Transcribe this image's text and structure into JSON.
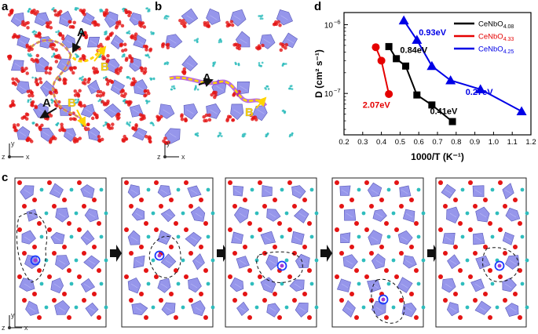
{
  "panels": {
    "a": {
      "letter": "a",
      "path_labels": [
        "A",
        "B",
        "A",
        "B"
      ]
    },
    "b": {
      "letter": "b",
      "path_labels": [
        "A",
        "B"
      ]
    },
    "c": {
      "letter": "c"
    },
    "d": {
      "letter": "d"
    }
  },
  "axes_indicator": {
    "y": "y",
    "x": "x",
    "z": "z"
  },
  "colors": {
    "polyhedron": "#7c7ce6",
    "oxygen": "#e41414",
    "cerium": "#2fbdbd",
    "path_yellow": "#ffd400",
    "path_purple": "#a23bd6",
    "highlight_ring": "#1a3cff",
    "arrow_black": "#111111"
  },
  "chart_data": {
    "type": "line",
    "xlabel": "1000/T (K⁻¹)",
    "ylabel": "D (cm² s⁻¹)",
    "xlim": [
      0.2,
      1.2
    ],
    "ylim": [
      2.5e-08,
      1.5e-06
    ],
    "yscale": "log",
    "xticks": [
      "0.2",
      "0.3",
      "0.4",
      "0.5",
      "0.6",
      "0.7",
      "0.8",
      "0.9",
      "1.0",
      "1.1",
      "1.2"
    ],
    "yticks": [
      {
        "value": 1e-06,
        "mant": "10",
        "exp": "−6"
      },
      {
        "value": 1e-07,
        "mant": "10",
        "exp": "−7"
      }
    ],
    "legend_position": "top-right",
    "series": [
      {
        "name": "CeNbO4.08",
        "base": "CeNbO",
        "sub": "4.08",
        "color": "#000000",
        "marker": "square",
        "x": [
          0.44,
          0.48,
          0.53,
          0.59,
          0.67,
          0.78
        ],
        "y": [
          4.8e-07,
          3.2e-07,
          2.5e-07,
          9.5e-08,
          6.8e-08,
          3.9e-08
        ]
      },
      {
        "name": "CeNbO4.33",
        "base": "CeNbO",
        "sub": "4.33",
        "color": "#e50000",
        "marker": "circle",
        "x": [
          0.37,
          0.4,
          0.44
        ],
        "y": [
          4.7e-07,
          3e-07,
          9.8e-08
        ]
      },
      {
        "name": "CeNbO4.25",
        "base": "CeNbO",
        "sub": "4.25",
        "color": "#0000e6",
        "marker": "triangle",
        "x": [
          0.52,
          0.59,
          0.67,
          0.77,
          0.93,
          1.15
        ],
        "y": [
          1.15e-06,
          6e-07,
          2.5e-07,
          1.55e-07,
          1.15e-07,
          5.5e-08
        ]
      }
    ],
    "annotations": [
      {
        "text": "0.84eV",
        "color": "#000000"
      },
      {
        "text": "0.41eV",
        "color": "#000000"
      },
      {
        "text": "2.07eV",
        "color": "#e50000"
      },
      {
        "text": "0.93eV",
        "color": "#0000e6"
      },
      {
        "text": "0.27eV",
        "color": "#0000e6"
      }
    ]
  }
}
